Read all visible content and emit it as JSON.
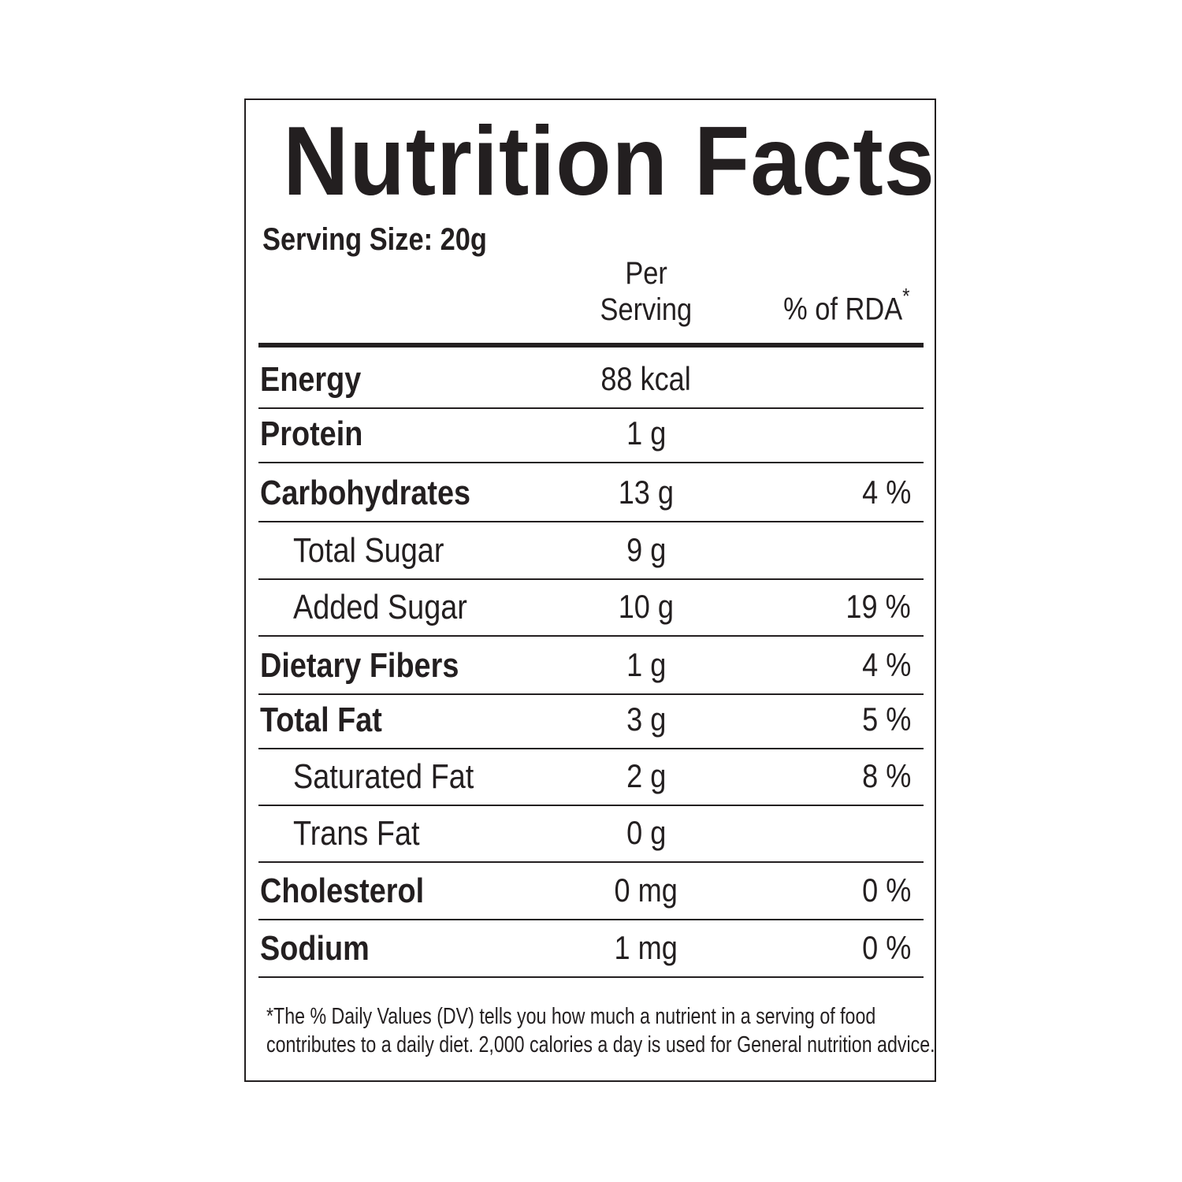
{
  "title": "Nutrition Facts",
  "serving_size": "Serving Size: 20g",
  "headers": {
    "per_line1": "Per",
    "per_line2": "Serving",
    "rda": "% of RDA",
    "rda_mark": "*"
  },
  "rows": [
    {
      "label": "Energy",
      "value": "88 kcal",
      "rda": "",
      "bold": true
    },
    {
      "label": "Protein",
      "value": "1 g",
      "rda": "",
      "bold": true
    },
    {
      "label": "Carbohydrates",
      "value": "13 g",
      "rda": "4 %",
      "bold": true
    },
    {
      "label": "Total Sugar",
      "value": "9 g",
      "rda": "",
      "bold": false
    },
    {
      "label": "Added Sugar",
      "value": "10 g",
      "rda": "19 %",
      "bold": false
    },
    {
      "label": "Dietary Fibers",
      "value": "1 g",
      "rda": "4 %",
      "bold": true
    },
    {
      "label": "Total Fat",
      "value": "3 g",
      "rda": "5 %",
      "bold": true
    },
    {
      "label": "Saturated Fat",
      "value": "2 g",
      "rda": "8 %",
      "bold": false
    },
    {
      "label": "Trans Fat",
      "value": "0 g",
      "rda": "",
      "bold": false
    },
    {
      "label": "Cholesterol",
      "value": "0 mg",
      "rda": "0 %",
      "bold": true
    },
    {
      "label": "Sodium",
      "value": "1 mg",
      "rda": "0 %",
      "bold": true
    }
  ],
  "footnote": {
    "line1": "*The % Daily Values (DV) tells you how much a nutrient in a serving of food",
    "line2": "contributes to a daily diet. 2,000 calories a day is used for General nutrition advice."
  }
}
